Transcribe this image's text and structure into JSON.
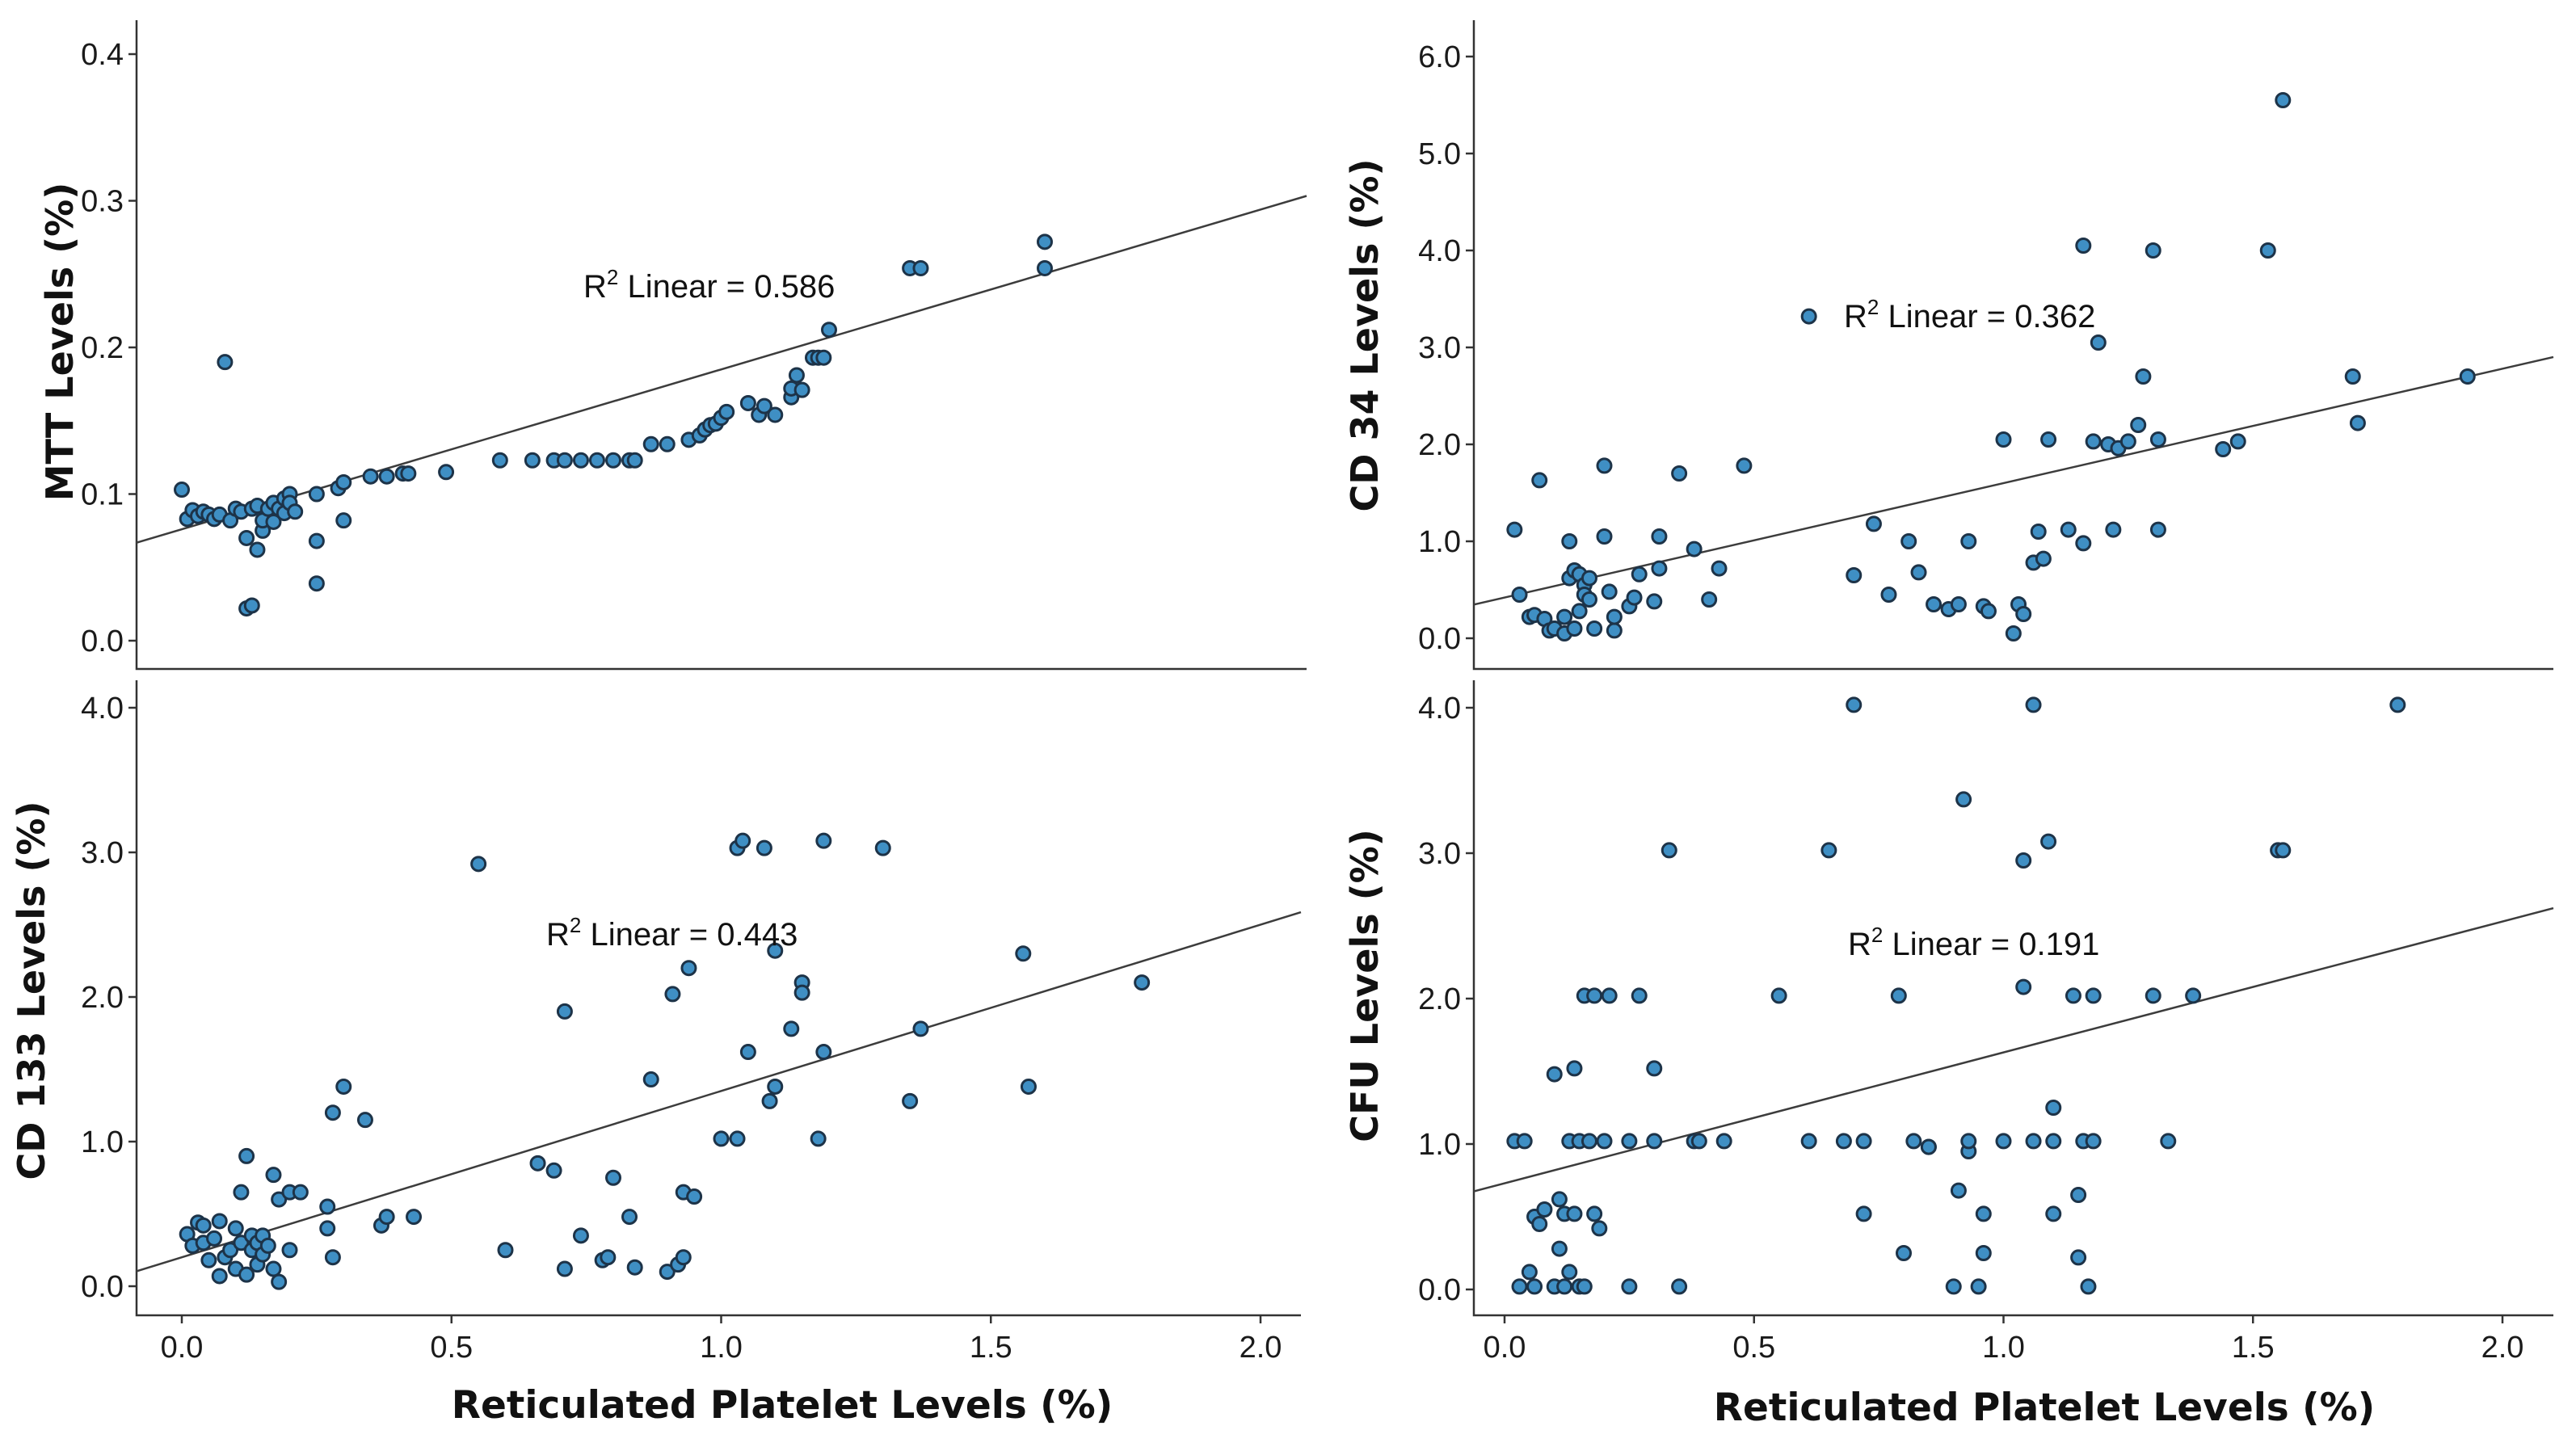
{
  "colors": {
    "point": "#3f8fc4",
    "point_edge": "#1d3348",
    "fit_line": "#3c3c3c"
  },
  "chart_data": [
    {
      "type": "scatter",
      "id": "mtt",
      "title": "",
      "ylabel": "MTT Levels (%)",
      "xlabel": "",
      "xlim": [
        -0.1,
        2.12
      ],
      "ylim": [
        -0.02,
        0.42
      ],
      "yticks": [
        0.0,
        0.1,
        0.2,
        0.3,
        0.4
      ],
      "ytick_labels": [
        "0.0",
        "0.1",
        "0.2",
        "0.3",
        "0.4"
      ],
      "xticks": [],
      "xtick_labels": [],
      "annotation": {
        "prefix": "R",
        "sup": "2",
        "text": " Linear = 0.586",
        "at": [
          0.75,
          0.24
        ]
      },
      "fit": {
        "intercept": 0.076,
        "slope": 0.109
      },
      "points": [
        [
          0.0,
          0.103
        ],
        [
          0.01,
          0.083
        ],
        [
          0.02,
          0.089
        ],
        [
          0.03,
          0.085
        ],
        [
          0.04,
          0.088
        ],
        [
          0.05,
          0.086
        ],
        [
          0.06,
          0.083
        ],
        [
          0.07,
          0.086
        ],
        [
          0.08,
          0.19
        ],
        [
          0.09,
          0.082
        ],
        [
          0.1,
          0.09
        ],
        [
          0.11,
          0.088
        ],
        [
          0.12,
          0.07
        ],
        [
          0.12,
          0.022
        ],
        [
          0.13,
          0.024
        ],
        [
          0.13,
          0.09
        ],
        [
          0.14,
          0.062
        ],
        [
          0.14,
          0.092
        ],
        [
          0.15,
          0.075
        ],
        [
          0.15,
          0.082
        ],
        [
          0.16,
          0.09
        ],
        [
          0.17,
          0.081
        ],
        [
          0.17,
          0.094
        ],
        [
          0.18,
          0.09
        ],
        [
          0.19,
          0.087
        ],
        [
          0.19,
          0.097
        ],
        [
          0.2,
          0.1
        ],
        [
          0.2,
          0.094
        ],
        [
          0.21,
          0.088
        ],
        [
          0.25,
          0.1
        ],
        [
          0.25,
          0.068
        ],
        [
          0.25,
          0.039
        ],
        [
          0.29,
          0.104
        ],
        [
          0.3,
          0.108
        ],
        [
          0.3,
          0.082
        ],
        [
          0.35,
          0.112
        ],
        [
          0.38,
          0.112
        ],
        [
          0.41,
          0.114
        ],
        [
          0.42,
          0.114
        ],
        [
          0.49,
          0.115
        ],
        [
          0.59,
          0.123
        ],
        [
          0.65,
          0.123
        ],
        [
          0.69,
          0.123
        ],
        [
          0.71,
          0.123
        ],
        [
          0.74,
          0.123
        ],
        [
          0.77,
          0.123
        ],
        [
          0.8,
          0.123
        ],
        [
          0.83,
          0.123
        ],
        [
          0.84,
          0.123
        ],
        [
          0.87,
          0.134
        ],
        [
          0.9,
          0.134
        ],
        [
          0.94,
          0.137
        ],
        [
          0.96,
          0.14
        ],
        [
          0.97,
          0.144
        ],
        [
          0.98,
          0.147
        ],
        [
          0.99,
          0.148
        ],
        [
          1.0,
          0.152
        ],
        [
          1.01,
          0.156
        ],
        [
          1.05,
          0.162
        ],
        [
          1.07,
          0.154
        ],
        [
          1.08,
          0.16
        ],
        [
          1.1,
          0.154
        ],
        [
          1.13,
          0.166
        ],
        [
          1.13,
          0.172
        ],
        [
          1.14,
          0.181
        ],
        [
          1.15,
          0.171
        ],
        [
          1.17,
          0.193
        ],
        [
          1.18,
          0.193
        ],
        [
          1.19,
          0.193
        ],
        [
          1.2,
          0.212
        ],
        [
          1.35,
          0.254
        ],
        [
          1.37,
          0.254
        ],
        [
          1.6,
          0.272
        ],
        [
          1.6,
          0.254
        ]
      ]
    },
    {
      "type": "scatter",
      "id": "cd34",
      "title": "",
      "ylabel": "CD 34 Levels (%)",
      "xlabel": "",
      "xlim": [
        -0.1,
        2.12
      ],
      "ylim": [
        -0.3,
        6.3
      ],
      "yticks": [
        0.0,
        1.0,
        2.0,
        3.0,
        4.0,
        5.0,
        6.0
      ],
      "ytick_labels": [
        "0.0",
        "1.0",
        "2.0",
        "3.0",
        "4.0",
        "5.0",
        "6.0"
      ],
      "xticks": [],
      "xtick_labels": [],
      "annotation": {
        "prefix": "R",
        "sup": "2",
        "text": " Linear = 0.362",
        "at": [
          0.68,
          3.27
        ]
      },
      "fit": {
        "intercept": 0.42,
        "slope": 1.18
      },
      "points": [
        [
          0.02,
          1.12
        ],
        [
          0.03,
          0.45
        ],
        [
          0.05,
          0.22
        ],
        [
          0.06,
          0.24
        ],
        [
          0.07,
          1.63
        ],
        [
          0.08,
          0.2
        ],
        [
          0.09,
          0.08
        ],
        [
          0.1,
          0.1
        ],
        [
          0.12,
          0.05
        ],
        [
          0.12,
          0.22
        ],
        [
          0.13,
          0.62
        ],
        [
          0.13,
          1.0
        ],
        [
          0.14,
          0.1
        ],
        [
          0.14,
          0.7
        ],
        [
          0.15,
          0.28
        ],
        [
          0.15,
          0.66
        ],
        [
          0.16,
          0.55
        ],
        [
          0.16,
          0.45
        ],
        [
          0.17,
          0.62
        ],
        [
          0.17,
          0.4
        ],
        [
          0.18,
          0.1
        ],
        [
          0.2,
          1.78
        ],
        [
          0.2,
          1.05
        ],
        [
          0.21,
          0.48
        ],
        [
          0.22,
          0.08
        ],
        [
          0.22,
          0.22
        ],
        [
          0.25,
          0.33
        ],
        [
          0.26,
          0.42
        ],
        [
          0.27,
          0.66
        ],
        [
          0.3,
          0.38
        ],
        [
          0.31,
          1.05
        ],
        [
          0.31,
          0.72
        ],
        [
          0.35,
          1.7
        ],
        [
          0.38,
          0.92
        ],
        [
          0.41,
          0.4
        ],
        [
          0.43,
          0.72
        ],
        [
          0.48,
          1.78
        ],
        [
          0.61,
          3.32
        ],
        [
          0.7,
          0.65
        ],
        [
          0.74,
          1.18
        ],
        [
          0.77,
          0.45
        ],
        [
          0.81,
          1.0
        ],
        [
          0.83,
          0.68
        ],
        [
          0.86,
          0.35
        ],
        [
          0.89,
          0.3
        ],
        [
          0.91,
          0.35
        ],
        [
          0.93,
          1.0
        ],
        [
          0.96,
          0.33
        ],
        [
          0.97,
          0.28
        ],
        [
          1.0,
          2.05
        ],
        [
          1.02,
          0.05
        ],
        [
          1.03,
          0.35
        ],
        [
          1.04,
          0.25
        ],
        [
          1.06,
          0.78
        ],
        [
          1.07,
          1.1
        ],
        [
          1.08,
          0.82
        ],
        [
          1.09,
          2.05
        ],
        [
          1.13,
          1.12
        ],
        [
          1.16,
          0.98
        ],
        [
          1.16,
          4.05
        ],
        [
          1.18,
          2.03
        ],
        [
          1.19,
          3.05
        ],
        [
          1.21,
          2.0
        ],
        [
          1.22,
          1.12
        ],
        [
          1.23,
          1.96
        ],
        [
          1.25,
          2.03
        ],
        [
          1.27,
          2.2
        ],
        [
          1.28,
          2.7
        ],
        [
          1.3,
          4.0
        ],
        [
          1.31,
          2.05
        ],
        [
          1.31,
          1.12
        ],
        [
          1.44,
          1.95
        ],
        [
          1.47,
          2.03
        ],
        [
          1.53,
          4.0
        ],
        [
          1.56,
          5.55
        ],
        [
          1.7,
          2.7
        ],
        [
          1.71,
          2.22
        ],
        [
          1.93,
          2.7
        ]
      ]
    },
    {
      "type": "scatter",
      "id": "cd133",
      "title": "",
      "ylabel": "CD 133 Levels (%)",
      "xlabel": "",
      "xlim": [
        -0.1,
        2.12
      ],
      "ylim": [
        -0.2,
        4.2
      ],
      "yticks": [
        0.0,
        1.0,
        2.0,
        3.0,
        4.0
      ],
      "ytick_labels": [
        "0.0",
        "1.0",
        "2.0",
        "3.0",
        "4.0"
      ],
      "xticks": [
        0.0,
        0.5,
        1.0,
        1.5,
        2.0
      ],
      "xtick_labels": [
        "0.0",
        "0.5",
        "1.0",
        "1.5",
        "2.0"
      ],
      "annotation": {
        "prefix": "R",
        "sup": "2",
        "text": " Linear = 0.443",
        "at": [
          0.68,
          2.38
        ]
      },
      "fit": {
        "intercept": 0.2,
        "slope": 1.15
      },
      "points": [
        [
          0.01,
          0.36
        ],
        [
          0.02,
          0.28
        ],
        [
          0.03,
          0.44
        ],
        [
          0.04,
          0.3
        ],
        [
          0.04,
          0.42
        ],
        [
          0.05,
          0.18
        ],
        [
          0.06,
          0.33
        ],
        [
          0.07,
          0.45
        ],
        [
          0.07,
          0.07
        ],
        [
          0.08,
          0.2
        ],
        [
          0.09,
          0.25
        ],
        [
          0.1,
          0.12
        ],
        [
          0.1,
          0.4
        ],
        [
          0.11,
          0.3
        ],
        [
          0.11,
          0.65
        ],
        [
          0.12,
          0.08
        ],
        [
          0.12,
          0.9
        ],
        [
          0.13,
          0.25
        ],
        [
          0.13,
          0.35
        ],
        [
          0.14,
          0.15
        ],
        [
          0.14,
          0.3
        ],
        [
          0.15,
          0.22
        ],
        [
          0.15,
          0.35
        ],
        [
          0.16,
          0.28
        ],
        [
          0.17,
          0.12
        ],
        [
          0.17,
          0.77
        ],
        [
          0.18,
          0.6
        ],
        [
          0.18,
          0.03
        ],
        [
          0.2,
          0.65
        ],
        [
          0.2,
          0.25
        ],
        [
          0.22,
          0.65
        ],
        [
          0.27,
          0.4
        ],
        [
          0.27,
          0.55
        ],
        [
          0.28,
          1.2
        ],
        [
          0.28,
          0.2
        ],
        [
          0.3,
          1.38
        ],
        [
          0.34,
          1.15
        ],
        [
          0.37,
          0.42
        ],
        [
          0.38,
          0.48
        ],
        [
          0.43,
          0.48
        ],
        [
          0.55,
          2.92
        ],
        [
          0.6,
          0.25
        ],
        [
          0.66,
          0.85
        ],
        [
          0.69,
          0.8
        ],
        [
          0.71,
          0.12
        ],
        [
          0.71,
          1.9
        ],
        [
          0.74,
          0.35
        ],
        [
          0.78,
          0.18
        ],
        [
          0.79,
          0.2
        ],
        [
          0.8,
          0.75
        ],
        [
          0.83,
          0.48
        ],
        [
          0.84,
          0.13
        ],
        [
          0.87,
          1.43
        ],
        [
          0.9,
          0.1
        ],
        [
          0.91,
          2.02
        ],
        [
          0.92,
          0.15
        ],
        [
          0.93,
          0.2
        ],
        [
          0.93,
          0.65
        ],
        [
          0.94,
          2.2
        ],
        [
          0.95,
          0.62
        ],
        [
          1.0,
          1.02
        ],
        [
          1.03,
          1.02
        ],
        [
          1.03,
          3.03
        ],
        [
          1.04,
          3.08
        ],
        [
          1.05,
          1.62
        ],
        [
          1.08,
          3.03
        ],
        [
          1.09,
          1.28
        ],
        [
          1.1,
          1.38
        ],
        [
          1.1,
          2.32
        ],
        [
          1.13,
          1.78
        ],
        [
          1.15,
          2.1
        ],
        [
          1.15,
          2.03
        ],
        [
          1.18,
          1.02
        ],
        [
          1.19,
          1.62
        ],
        [
          1.19,
          3.08
        ],
        [
          1.3,
          3.03
        ],
        [
          1.35,
          1.28
        ],
        [
          1.37,
          1.78
        ],
        [
          1.56,
          2.3
        ],
        [
          1.57,
          1.38
        ],
        [
          1.78,
          2.1
        ]
      ]
    },
    {
      "type": "scatter",
      "id": "cfu",
      "title": "",
      "ylabel": "CFU Levels (%)",
      "xlabel": "",
      "xlim": [
        -0.1,
        2.12
      ],
      "ylim": [
        -0.2,
        4.2
      ],
      "yticks": [
        0.0,
        1.0,
        2.0,
        3.0,
        4.0
      ],
      "ytick_labels": [
        "0.0",
        "1.0",
        "2.0",
        "3.0",
        "4.0"
      ],
      "xticks": [
        0.0,
        0.5,
        1.0,
        1.5,
        2.0
      ],
      "xtick_labels": [
        "0.0",
        "0.5",
        "1.0",
        "1.5",
        "2.0"
      ],
      "annotation": {
        "prefix": "R",
        "sup": "2",
        "text": " Linear = 0.191",
        "at": [
          0.68,
          2.42
        ]
      },
      "fit": {
        "intercept": 0.73,
        "slope": 0.9
      },
      "points": [
        [
          0.02,
          1.02
        ],
        [
          0.03,
          0.02
        ],
        [
          0.04,
          1.02
        ],
        [
          0.05,
          0.12
        ],
        [
          0.06,
          0.02
        ],
        [
          0.06,
          0.5
        ],
        [
          0.07,
          0.45
        ],
        [
          0.08,
          0.55
        ],
        [
          0.1,
          1.48
        ],
        [
          0.1,
          0.02
        ],
        [
          0.11,
          0.62
        ],
        [
          0.11,
          0.28
        ],
        [
          0.12,
          0.52
        ],
        [
          0.12,
          0.02
        ],
        [
          0.13,
          1.02
        ],
        [
          0.13,
          0.12
        ],
        [
          0.14,
          0.52
        ],
        [
          0.14,
          1.52
        ],
        [
          0.15,
          1.02
        ],
        [
          0.15,
          0.02
        ],
        [
          0.16,
          2.02
        ],
        [
          0.16,
          0.02
        ],
        [
          0.17,
          1.02
        ],
        [
          0.18,
          0.52
        ],
        [
          0.18,
          2.02
        ],
        [
          0.19,
          0.42
        ],
        [
          0.2,
          1.02
        ],
        [
          0.21,
          2.02
        ],
        [
          0.25,
          1.02
        ],
        [
          0.25,
          0.02
        ],
        [
          0.27,
          2.02
        ],
        [
          0.3,
          1.52
        ],
        [
          0.3,
          1.02
        ],
        [
          0.33,
          3.02
        ],
        [
          0.35,
          0.02
        ],
        [
          0.38,
          1.02
        ],
        [
          0.39,
          1.02
        ],
        [
          0.44,
          1.02
        ],
        [
          0.55,
          2.02
        ],
        [
          0.61,
          1.02
        ],
        [
          0.65,
          3.02
        ],
        [
          0.68,
          1.02
        ],
        [
          0.7,
          4.02
        ],
        [
          0.72,
          0.52
        ],
        [
          0.72,
          1.02
        ],
        [
          0.79,
          2.02
        ],
        [
          0.8,
          0.25
        ],
        [
          0.82,
          1.02
        ],
        [
          0.85,
          0.98
        ],
        [
          0.85,
          0.98
        ],
        [
          0.9,
          0.02
        ],
        [
          0.91,
          0.68
        ],
        [
          0.92,
          3.37
        ],
        [
          0.93,
          0.95
        ],
        [
          0.93,
          1.02
        ],
        [
          0.95,
          0.02
        ],
        [
          0.96,
          0.25
        ],
        [
          0.96,
          0.52
        ],
        [
          1.0,
          1.02
        ],
        [
          1.04,
          2.08
        ],
        [
          1.04,
          2.95
        ],
        [
          1.06,
          1.02
        ],
        [
          1.06,
          4.02
        ],
        [
          1.09,
          3.08
        ],
        [
          1.1,
          0.52
        ],
        [
          1.1,
          1.02
        ],
        [
          1.1,
          1.25
        ],
        [
          1.14,
          2.02
        ],
        [
          1.15,
          0.22
        ],
        [
          1.15,
          0.65
        ],
        [
          1.16,
          1.02
        ],
        [
          1.17,
          0.02
        ],
        [
          1.18,
          2.02
        ],
        [
          1.18,
          1.02
        ],
        [
          1.3,
          2.02
        ],
        [
          1.33,
          1.02
        ],
        [
          1.38,
          2.02
        ],
        [
          1.55,
          3.02
        ],
        [
          1.56,
          3.02
        ],
        [
          1.79,
          4.02
        ]
      ]
    }
  ],
  "shared_xlabel": "Reticulated Platelet Levels (%)",
  "bottom_xlabels": [
    "Reticulated Platelet Levels (%)",
    "Reticulated Platelet Levels (%)"
  ]
}
